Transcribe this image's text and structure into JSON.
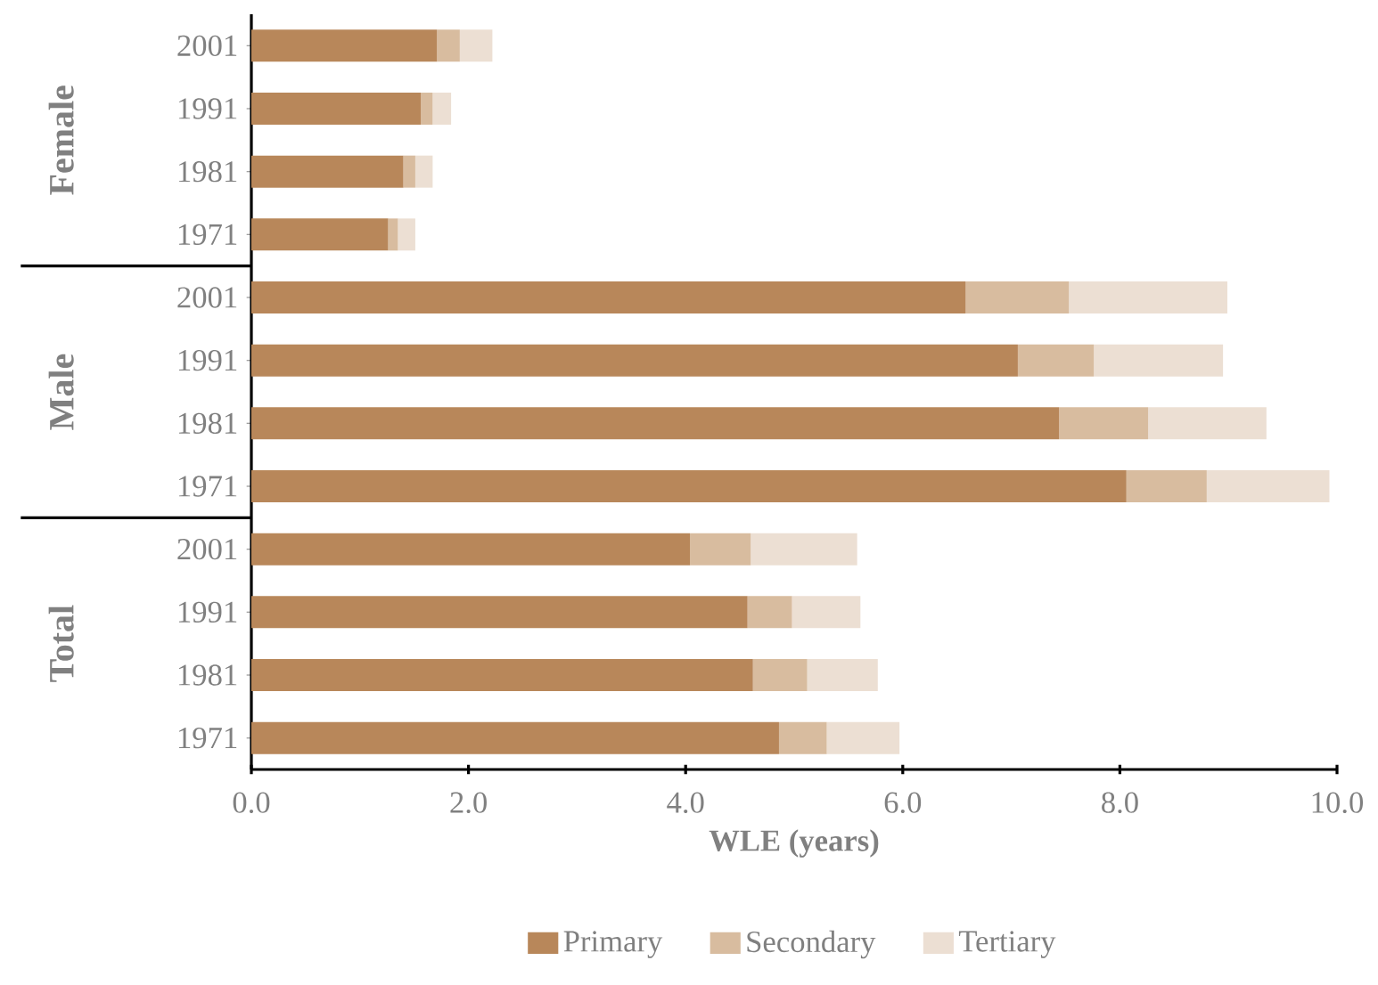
{
  "chart_data": {
    "type": "bar",
    "orientation": "horizontal",
    "stacked": true,
    "categories": [
      "2001",
      "1991",
      "1981",
      "1971",
      "2001",
      "1991",
      "1981",
      "1971",
      "2001",
      "1991",
      "1981",
      "1971"
    ],
    "series": [
      {
        "name": "Primary",
        "color": "#b8875a",
        "values": [
          1.71,
          1.56,
          1.4,
          1.26,
          6.58,
          7.06,
          7.44,
          8.06,
          4.04,
          4.57,
          4.62,
          4.86
        ]
      },
      {
        "name": "Secondary",
        "color": "#d8bc9f",
        "values": [
          0.21,
          0.11,
          0.11,
          0.09,
          0.95,
          0.7,
          0.82,
          0.74,
          0.56,
          0.41,
          0.5,
          0.44
        ]
      },
      {
        "name": "Tertiary",
        "color": "#ecdfd3",
        "values": [
          0.3,
          0.17,
          0.16,
          0.16,
          1.46,
          1.19,
          1.09,
          1.13,
          0.98,
          0.63,
          0.65,
          0.67
        ]
      }
    ],
    "xlabel": "WLE (years)",
    "annotations": [
      "Female",
      "Male",
      "Total"
    ],
    "xlim": [
      0,
      10
    ],
    "xticks": [
      {
        "value": 0,
        "label": "0.0"
      },
      {
        "value": 2,
        "label": "2.0"
      },
      {
        "value": 4,
        "label": "4.0"
      },
      {
        "value": 6,
        "label": "6.0"
      },
      {
        "value": 8,
        "label": "8.0"
      },
      {
        "value": 10,
        "label": "10.0"
      }
    ],
    "legend": "bottom"
  }
}
